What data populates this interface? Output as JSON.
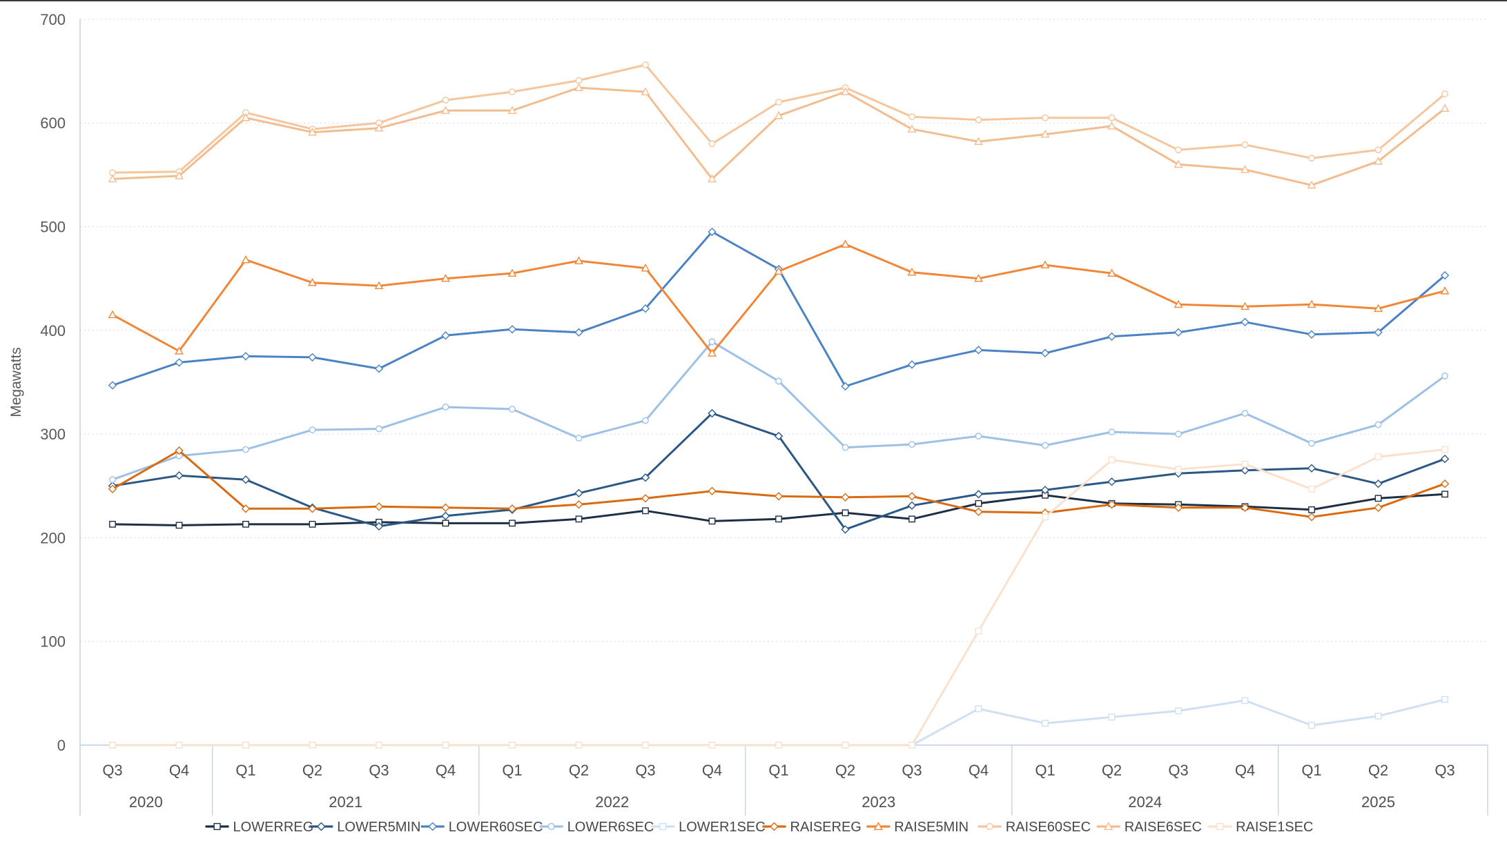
{
  "chart_data": {
    "type": "line",
    "title": "",
    "ylabel": "Megawatts",
    "ylim": [
      0,
      700
    ],
    "y_ticks": [
      0,
      100,
      200,
      300,
      400,
      500,
      600,
      700
    ],
    "grid": "horizontal-dotted",
    "legend_position": "bottom",
    "x_quarter_labels": [
      "Q3",
      "Q4",
      "Q1",
      "Q2",
      "Q3",
      "Q4",
      "Q1",
      "Q2",
      "Q3",
      "Q4",
      "Q1",
      "Q2",
      "Q3",
      "Q4",
      "Q1",
      "Q2",
      "Q3",
      "Q4",
      "Q1",
      "Q2",
      "Q3"
    ],
    "year_groups": [
      {
        "label": "2020",
        "from": 0,
        "to": 1
      },
      {
        "label": "2021",
        "from": 2,
        "to": 5
      },
      {
        "label": "2022",
        "from": 6,
        "to": 9
      },
      {
        "label": "2023",
        "from": 10,
        "to": 13
      },
      {
        "label": "2024",
        "from": 14,
        "to": 17
      },
      {
        "label": "2025",
        "from": 18,
        "to": 20
      }
    ],
    "series": [
      {
        "name": "LOWERREG",
        "color": "#1d2f45",
        "marker": "square",
        "values": [
          213,
          212,
          213,
          213,
          215,
          214,
          214,
          218,
          226,
          216,
          218,
          224,
          218,
          233,
          241,
          233,
          232,
          230,
          227,
          238,
          242
        ]
      },
      {
        "name": "LOWER5MIN",
        "color": "#2b5787",
        "marker": "diamond",
        "values": [
          250,
          260,
          256,
          229,
          211,
          221,
          227,
          243,
          258,
          320,
          298,
          208,
          231,
          242,
          246,
          254,
          262,
          265,
          267,
          252,
          276
        ]
      },
      {
        "name": "LOWER60SEC",
        "color": "#4a82c4",
        "marker": "diamond",
        "values": [
          347,
          369,
          375,
          374,
          363,
          395,
          401,
          398,
          421,
          495,
          459,
          346,
          367,
          381,
          378,
          394,
          398,
          408,
          396,
          398,
          453
        ]
      },
      {
        "name": "LOWER6SEC",
        "color": "#9cc0e6",
        "marker": "circle",
        "values": [
          256,
          279,
          285,
          304,
          305,
          326,
          324,
          296,
          313,
          389,
          351,
          287,
          290,
          298,
          289,
          302,
          300,
          320,
          291,
          309,
          356
        ]
      },
      {
        "name": "LOWER1SEC",
        "color": "#cfe0f2",
        "marker": "square",
        "values": [
          0,
          0,
          0,
          0,
          0,
          0,
          0,
          0,
          0,
          0,
          0,
          0,
          0,
          35,
          21,
          27,
          33,
          43,
          19,
          28,
          44
        ]
      },
      {
        "name": "RAISEREG",
        "color": "#d96a10",
        "marker": "diamond",
        "values": [
          247,
          284,
          228,
          228,
          230,
          229,
          228,
          232,
          238,
          245,
          240,
          239,
          240,
          225,
          224,
          232,
          229,
          229,
          220,
          229,
          252
        ]
      },
      {
        "name": "RAISE5MIN",
        "color": "#f08636",
        "marker": "triangle",
        "values": [
          415,
          380,
          468,
          446,
          443,
          450,
          455,
          467,
          460,
          378,
          457,
          483,
          456,
          450,
          463,
          455,
          425,
          423,
          425,
          421,
          438
        ]
      },
      {
        "name": "RAISE60SEC",
        "color": "#f6c59c",
        "marker": "circle",
        "values": [
          552,
          553,
          610,
          594,
          600,
          622,
          630,
          641,
          656,
          580,
          620,
          634,
          606,
          603,
          605,
          605,
          574,
          579,
          566,
          574,
          628
        ]
      },
      {
        "name": "RAISE6SEC",
        "color": "#f3bc8e",
        "marker": "triangle",
        "values": [
          546,
          549,
          605,
          591,
          595,
          612,
          612,
          634,
          630,
          546,
          607,
          630,
          594,
          582,
          589,
          597,
          560,
          555,
          540,
          563,
          614
        ]
      },
      {
        "name": "RAISE1SEC",
        "color": "#fae1cd",
        "marker": "square",
        "values": [
          0,
          0,
          0,
          0,
          0,
          0,
          0,
          0,
          0,
          0,
          0,
          0,
          0,
          110,
          220,
          275,
          266,
          271,
          247,
          278,
          285
        ]
      }
    ],
    "style": {
      "axis_line_color": "#b9cde4",
      "gridline_color": "#ccd9ee",
      "tick_label_color": "#595959",
      "x_label_color": "#4f4f4f",
      "legend_text_color": "#474747"
    }
  }
}
